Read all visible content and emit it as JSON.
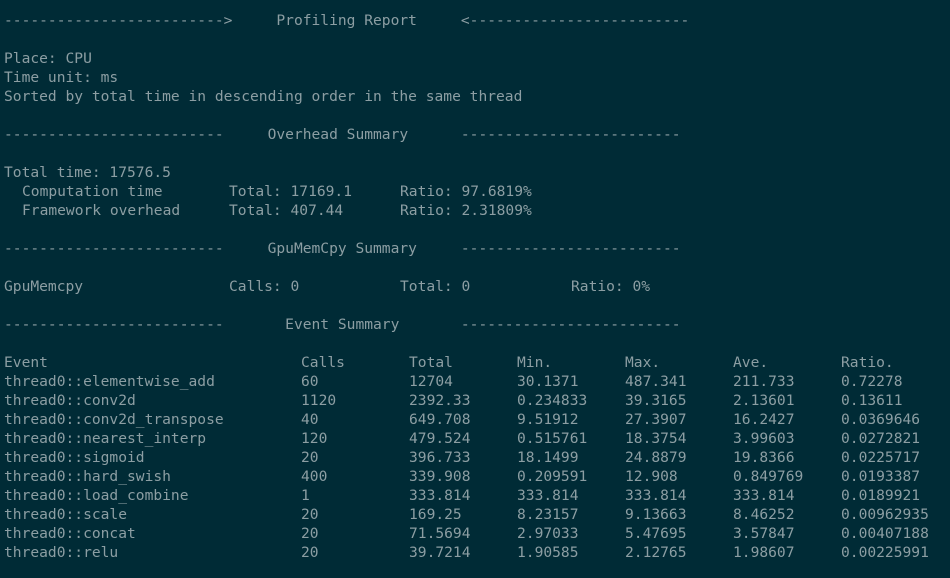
{
  "report": {
    "header": "------------------------->     Profiling Report     <-------------------------",
    "place": "Place: CPU",
    "time_unit": "Time unit: ms",
    "sorted_by": "Sorted by total time in descending order in the same thread"
  },
  "overhead": {
    "header": "-------------------------     Overhead Summary      -------------------------",
    "total_time": "Total time: 17576.5",
    "rows": [
      {
        "name": "Computation time",
        "total": "Total: 17169.1",
        "ratio": "Ratio: 97.6819%"
      },
      {
        "name": "Framework overhead",
        "total": "Total: 407.44",
        "ratio": "Ratio: 2.31809%"
      }
    ]
  },
  "gpumemcpy": {
    "header": "-------------------------     GpuMemCpy Summary     -------------------------",
    "name": "GpuMemcpy",
    "calls": "Calls: 0",
    "total": "Total: 0",
    "ratio": "Ratio: 0%"
  },
  "events": {
    "header": "-------------------------       Event Summary       -------------------------",
    "columns": [
      "Event",
      "Calls",
      "Total",
      "Min.",
      "Max.",
      "Ave.",
      "Ratio."
    ],
    "rows": [
      [
        "thread0::elementwise_add",
        "60",
        "12704",
        "30.1371",
        "487.341",
        "211.733",
        "0.72278"
      ],
      [
        "thread0::conv2d",
        "1120",
        "2392.33",
        "0.234833",
        "39.3165",
        "2.13601",
        "0.13611"
      ],
      [
        "thread0::conv2d_transpose",
        "40",
        "649.708",
        "9.51912",
        "27.3907",
        "16.2427",
        "0.0369646"
      ],
      [
        "thread0::nearest_interp",
        "120",
        "479.524",
        "0.515761",
        "18.3754",
        "3.99603",
        "0.0272821"
      ],
      [
        "thread0::sigmoid",
        "20",
        "396.733",
        "18.1499",
        "24.8879",
        "19.8366",
        "0.0225717"
      ],
      [
        "thread0::hard_swish",
        "400",
        "339.908",
        "0.209591",
        "12.908",
        "0.849769",
        "0.0193387"
      ],
      [
        "thread0::load_combine",
        "1",
        "333.814",
        "333.814",
        "333.814",
        "333.814",
        "0.0189921"
      ],
      [
        "thread0::scale",
        "20",
        "169.25",
        "8.23157",
        "9.13663",
        "8.46252",
        "0.00962935"
      ],
      [
        "thread0::concat",
        "20",
        "71.5694",
        "2.97033",
        "5.47695",
        "3.57847",
        "0.00407188"
      ],
      [
        "thread0::relu",
        "20",
        "39.7214",
        "1.90585",
        "2.12765",
        "1.98607",
        "0.00225991"
      ]
    ]
  }
}
